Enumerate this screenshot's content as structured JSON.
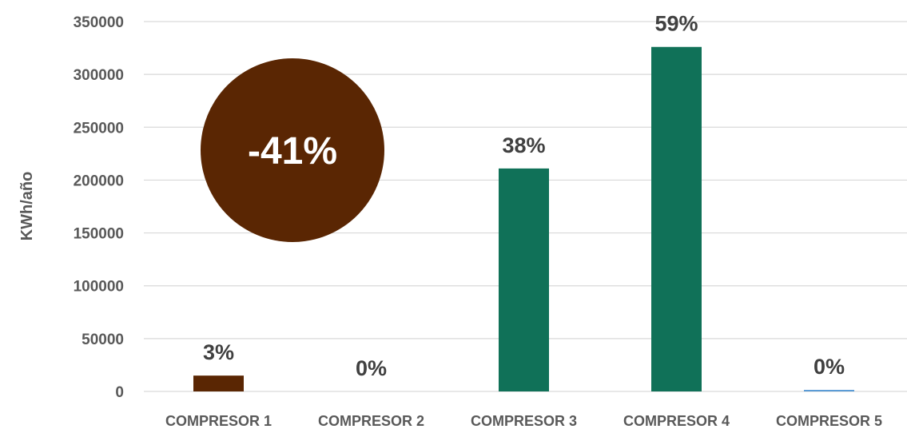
{
  "chart_data": {
    "type": "bar",
    "ylabel": "KWh/año",
    "xlabel": "",
    "ylim": [
      0,
      350000
    ],
    "yticks": [
      0,
      50000,
      100000,
      150000,
      200000,
      250000,
      300000,
      350000
    ],
    "grid": true,
    "categories": [
      "COMPRESOR 1",
      "COMPRESOR 2",
      "COMPRESOR 3",
      "COMPRESOR 4",
      "COMPRESOR 5"
    ],
    "values": [
      15000,
      0,
      211000,
      326000,
      1500
    ],
    "data_labels": [
      "3%",
      "0%",
      "38%",
      "59%",
      "0%"
    ],
    "bar_colors": [
      "#5a2603",
      "#5a2603",
      "#107158",
      "#107158",
      "#5b9bd5"
    ],
    "annotation": {
      "text": "-41%",
      "color": "#5a2603"
    }
  }
}
